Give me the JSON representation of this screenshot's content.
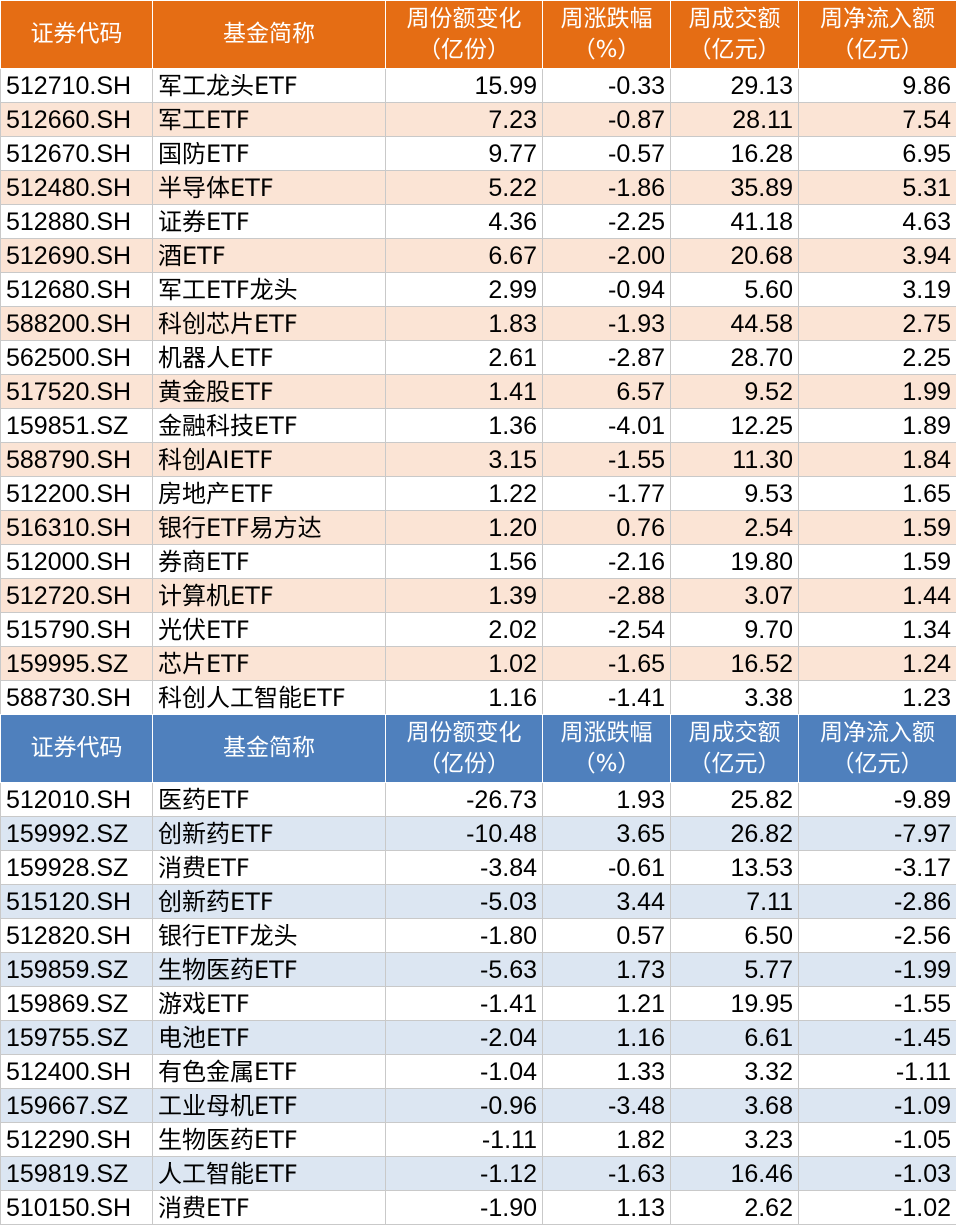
{
  "colors": {
    "top_header_bg": "#e56d14",
    "top_stripe": "#fbe4d5",
    "bottom_header_bg": "#4f80bd",
    "bottom_stripe": "#dce6f2",
    "header_text": "#ffffff"
  },
  "headers": {
    "code": "证券代码",
    "name": "基金简称",
    "share_change_l1": "周份额变化",
    "share_change_l2": "（亿份）",
    "pct_change_l1": "周涨跌幅",
    "pct_change_l2": "（%）",
    "turnover_l1": "周成交额",
    "turnover_l2": "（亿元）",
    "net_inflow_l1": "周净流入额",
    "net_inflow_l2": "（亿元）"
  },
  "inflow_rows": [
    [
      "512710.SH",
      "军工龙头ETF",
      "15.99",
      "-0.33",
      "29.13",
      "9.86"
    ],
    [
      "512660.SH",
      "军工ETF",
      "7.23",
      "-0.87",
      "28.11",
      "7.54"
    ],
    [
      "512670.SH",
      "国防ETF",
      "9.77",
      "-0.57",
      "16.28",
      "6.95"
    ],
    [
      "512480.SH",
      "半导体ETF",
      "5.22",
      "-1.86",
      "35.89",
      "5.31"
    ],
    [
      "512880.SH",
      "证券ETF",
      "4.36",
      "-2.25",
      "41.18",
      "4.63"
    ],
    [
      "512690.SH",
      "酒ETF",
      "6.67",
      "-2.00",
      "20.68",
      "3.94"
    ],
    [
      "512680.SH",
      "军工ETF龙头",
      "2.99",
      "-0.94",
      "5.60",
      "3.19"
    ],
    [
      "588200.SH",
      "科创芯片ETF",
      "1.83",
      "-1.93",
      "44.58",
      "2.75"
    ],
    [
      "562500.SH",
      "机器人ETF",
      "2.61",
      "-2.87",
      "28.70",
      "2.25"
    ],
    [
      "517520.SH",
      "黄金股ETF",
      "1.41",
      "6.57",
      "9.52",
      "1.99"
    ],
    [
      "159851.SZ",
      "金融科技ETF",
      "1.36",
      "-4.01",
      "12.25",
      "1.89"
    ],
    [
      "588790.SH",
      "科创AIETF",
      "3.15",
      "-1.55",
      "11.30",
      "1.84"
    ],
    [
      "512200.SH",
      "房地产ETF",
      "1.22",
      "-1.77",
      "9.53",
      "1.65"
    ],
    [
      "516310.SH",
      "银行ETF易方达",
      "1.20",
      "0.76",
      "2.54",
      "1.59"
    ],
    [
      "512000.SH",
      "券商ETF",
      "1.56",
      "-2.16",
      "19.80",
      "1.59"
    ],
    [
      "512720.SH",
      "计算机ETF",
      "1.39",
      "-2.88",
      "3.07",
      "1.44"
    ],
    [
      "515790.SH",
      "光伏ETF",
      "2.02",
      "-2.54",
      "9.70",
      "1.34"
    ],
    [
      "159995.SZ",
      "芯片ETF",
      "1.02",
      "-1.65",
      "16.52",
      "1.24"
    ],
    [
      "588730.SH",
      "科创人工智能ETF",
      "1.16",
      "-1.41",
      "3.38",
      "1.23"
    ]
  ],
  "outflow_rows": [
    [
      "512010.SH",
      "医药ETF",
      "-26.73",
      "1.93",
      "25.82",
      "-9.89"
    ],
    [
      "159992.SZ",
      "创新药ETF",
      "-10.48",
      "3.65",
      "26.82",
      "-7.97"
    ],
    [
      "159928.SZ",
      "消费ETF",
      "-3.84",
      "-0.61",
      "13.53",
      "-3.17"
    ],
    [
      "515120.SH",
      "创新药ETF",
      "-5.03",
      "3.44",
      "7.11",
      "-2.86"
    ],
    [
      "512820.SH",
      "银行ETF龙头",
      "-1.80",
      "0.57",
      "6.50",
      "-2.56"
    ],
    [
      "159859.SZ",
      "生物医药ETF",
      "-5.63",
      "1.73",
      "5.77",
      "-1.99"
    ],
    [
      "159869.SZ",
      "游戏ETF",
      "-1.41",
      "1.21",
      "19.95",
      "-1.55"
    ],
    [
      "159755.SZ",
      "电池ETF",
      "-2.04",
      "1.16",
      "6.61",
      "-1.45"
    ],
    [
      "512400.SH",
      "有色金属ETF",
      "-1.04",
      "1.33",
      "3.32",
      "-1.11"
    ],
    [
      "159667.SZ",
      "工业母机ETF",
      "-0.96",
      "-3.48",
      "3.68",
      "-1.09"
    ],
    [
      "512290.SH",
      "生物医药ETF",
      "-1.11",
      "1.82",
      "3.23",
      "-1.05"
    ],
    [
      "159819.SZ",
      "人工智能ETF",
      "-1.12",
      "-1.63",
      "16.46",
      "-1.03"
    ],
    [
      "510150.SH",
      "消费ETF",
      "-1.90",
      "1.13",
      "2.62",
      "-1.02"
    ]
  ]
}
